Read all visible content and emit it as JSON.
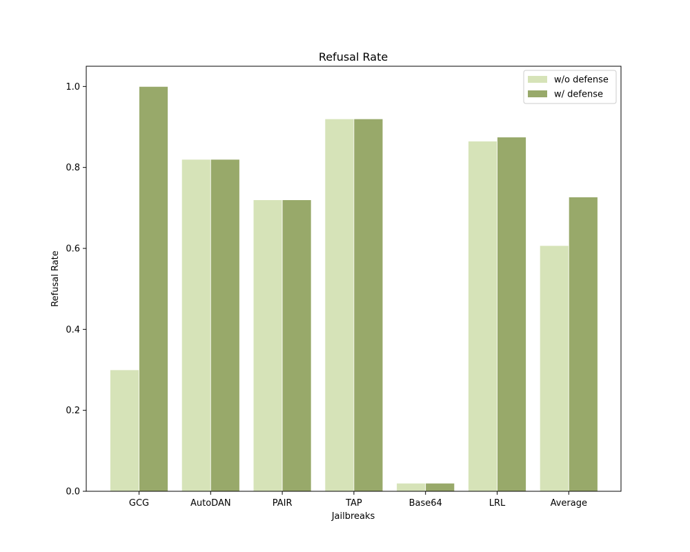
{
  "chart_data": {
    "type": "bar",
    "title": "Refusal Rate",
    "xlabel": "Jailbreaks",
    "ylabel": "Refusal Rate",
    "categories": [
      "GCG",
      "AutoDAN",
      "PAIR",
      "TAP",
      "Base64",
      "LRL",
      "Average"
    ],
    "series": [
      {
        "name": "w/o defense",
        "color": "#d6e3b8",
        "values": [
          0.3,
          0.82,
          0.72,
          0.92,
          0.02,
          0.865,
          0.607
        ]
      },
      {
        "name": "w/ defense",
        "color": "#98a96a",
        "values": [
          1.0,
          0.82,
          0.72,
          0.92,
          0.02,
          0.875,
          0.727
        ]
      }
    ],
    "ylim": [
      0,
      1.05
    ],
    "yticks": [
      "0.0",
      "0.2",
      "0.4",
      "0.6",
      "0.8",
      "1.0"
    ],
    "legend_position": "top-right",
    "grid": false
  }
}
